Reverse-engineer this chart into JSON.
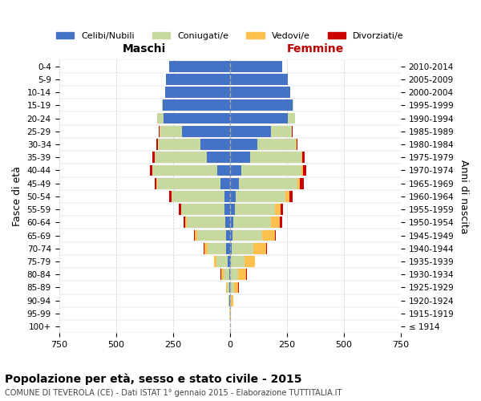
{
  "age_groups": [
    "100+",
    "95-99",
    "90-94",
    "85-89",
    "80-84",
    "75-79",
    "70-74",
    "65-69",
    "60-64",
    "55-59",
    "50-54",
    "45-49",
    "40-44",
    "35-39",
    "30-34",
    "25-29",
    "20-24",
    "15-19",
    "10-14",
    "5-9",
    "0-4"
  ],
  "birth_years": [
    "≤ 1914",
    "1915-1919",
    "1920-1924",
    "1925-1929",
    "1930-1934",
    "1935-1939",
    "1940-1944",
    "1945-1949",
    "1950-1954",
    "1955-1959",
    "1960-1964",
    "1965-1969",
    "1970-1974",
    "1975-1979",
    "1980-1984",
    "1985-1989",
    "1990-1994",
    "1995-1999",
    "2000-2004",
    "2005-2009",
    "2010-2014"
  ],
  "maschi": {
    "celibi": [
      0,
      0,
      1,
      2,
      4,
      8,
      17,
      15,
      20,
      22,
      25,
      40,
      55,
      100,
      130,
      210,
      290,
      295,
      285,
      280,
      265
    ],
    "coniugati": [
      0,
      1,
      4,
      10,
      25,
      50,
      80,
      130,
      170,
      190,
      230,
      280,
      285,
      230,
      185,
      100,
      30,
      3,
      0,
      0,
      0
    ],
    "vedovi": [
      0,
      0,
      2,
      5,
      10,
      10,
      15,
      10,
      5,
      3,
      2,
      1,
      1,
      1,
      1,
      0,
      0,
      0,
      0,
      0,
      0
    ],
    "divorziati": [
      0,
      0,
      0,
      0,
      1,
      1,
      2,
      3,
      8,
      10,
      8,
      10,
      10,
      8,
      5,
      3,
      0,
      0,
      0,
      0,
      0
    ]
  },
  "femmine": {
    "nubili": [
      0,
      0,
      1,
      1,
      2,
      4,
      8,
      12,
      15,
      22,
      25,
      38,
      50,
      90,
      120,
      180,
      255,
      275,
      265,
      255,
      230
    ],
    "coniugate": [
      0,
      1,
      5,
      18,
      35,
      60,
      95,
      130,
      165,
      175,
      220,
      260,
      265,
      225,
      170,
      90,
      30,
      4,
      0,
      0,
      0
    ],
    "vedove": [
      0,
      2,
      8,
      18,
      35,
      45,
      55,
      55,
      40,
      25,
      15,
      10,
      5,
      3,
      2,
      1,
      0,
      0,
      0,
      0,
      0
    ],
    "divorziate": [
      0,
      0,
      0,
      1,
      1,
      2,
      3,
      3,
      8,
      10,
      15,
      15,
      15,
      10,
      5,
      3,
      0,
      0,
      0,
      0,
      0
    ]
  },
  "colors": {
    "celibi_nubili": "#4472c4",
    "coniugati": "#c8d9a0",
    "vedovi": "#ffc04d",
    "divorziati": "#cc0000"
  },
  "xlim": 750,
  "title": "Popolazione per età, sesso e stato civile - 2015",
  "subtitle": "COMUNE DI TEVEROLA (CE) - Dati ISTAT 1° gennaio 2015 - Elaborazione TUTTITALIA.IT",
  "ylabel_left": "Fasce di età",
  "ylabel_right": "Anni di nascita",
  "xlabel_left": "Maschi",
  "xlabel_right": "Femmine",
  "background_color": "#ffffff",
  "grid_color": "#cccccc"
}
